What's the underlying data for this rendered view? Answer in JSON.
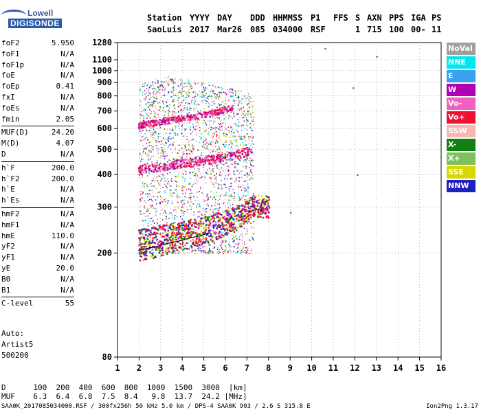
{
  "logo": {
    "line1": "Lowell",
    "line2": "DIGISONDE"
  },
  "header": {
    "station_label": "Station",
    "station": "SaoLuis",
    "yyyy_label": "YYYY",
    "yyyy": "2017",
    "day_label": "DAY",
    "day": "Mar26",
    "ddd_label": "DDD",
    "ddd": "085",
    "hhmmss_label": "HHMMSS",
    "hhmmss": "034000",
    "p1_label": "P1",
    "p1": "RSF",
    "ffs_label": "FFS",
    "ffs": "",
    "s_label": "S",
    "s": "1",
    "axn_label": "AXN",
    "axn": "715",
    "pps_label": "PPS",
    "pps": "100",
    "iga_label": "IGA",
    "iga": "00-",
    "ps_label": "PS",
    "ps": "11"
  },
  "params": {
    "group1": [
      {
        "k": "foF2",
        "v": "5.950"
      },
      {
        "k": "foF1",
        "v": "N/A"
      },
      {
        "k": "foF1p",
        "v": "N/A"
      },
      {
        "k": "foE",
        "v": "N/A"
      },
      {
        "k": "foEp",
        "v": "0.41"
      },
      {
        "k": "fxI",
        "v": "N/A"
      },
      {
        "k": "foEs",
        "v": "N/A"
      },
      {
        "k": "fmin",
        "v": "2.05"
      }
    ],
    "group2": [
      {
        "k": "MUF(D)",
        "v": "24.20"
      },
      {
        "k": "M(D)",
        "v": "4.07"
      },
      {
        "k": "D",
        "v": "N/A"
      }
    ],
    "group3": [
      {
        "k": "h`F",
        "v": "200.0"
      },
      {
        "k": "h`F2",
        "v": "200.0"
      },
      {
        "k": "h`E",
        "v": "N/A"
      },
      {
        "k": "h`Es",
        "v": "N/A"
      }
    ],
    "group4": [
      {
        "k": "hmF2",
        "v": "N/A"
      },
      {
        "k": "hmF1",
        "v": "N/A"
      },
      {
        "k": "hmE",
        "v": "110.0"
      },
      {
        "k": "yF2",
        "v": "N/A"
      },
      {
        "k": "yF1",
        "v": "N/A"
      },
      {
        "k": "yE",
        "v": "20.0"
      },
      {
        "k": "B0",
        "v": "N/A"
      },
      {
        "k": "B1",
        "v": "N/A"
      }
    ],
    "group5": [
      {
        "k": "C-level",
        "v": "55"
      }
    ]
  },
  "auto": {
    "line1": "Auto:",
    "line2": "Artist5",
    "line3": "500200"
  },
  "legend": [
    {
      "label": "NoVal",
      "color": "#a0a0a0"
    },
    {
      "label": "NNE",
      "color": "#00e5ee"
    },
    {
      "label": "E",
      "color": "#3aa0f0"
    },
    {
      "label": "W",
      "color": "#b000b0"
    },
    {
      "label": "Vo-",
      "color": "#f060c0"
    },
    {
      "label": "Vo+",
      "color": "#f01030"
    },
    {
      "label": "SSW",
      "color": "#f4b8b0"
    },
    {
      "label": "X-",
      "color": "#108010"
    },
    {
      "label": "X+",
      "color": "#80c060"
    },
    {
      "label": "SSE",
      "color": "#d8d800"
    },
    {
      "label": "NNW",
      "color": "#2020c0"
    }
  ],
  "chart_data": {
    "type": "scatter",
    "title": "",
    "xlabel": "",
    "ylabel": "",
    "xlim": [
      1,
      16
    ],
    "ylim": [
      80,
      1280
    ],
    "y_scale": "log",
    "x_ticks": [
      1,
      2,
      3,
      4,
      5,
      6,
      7,
      8,
      9,
      10,
      11,
      12,
      13,
      14,
      15,
      16
    ],
    "y_ticks": [
      80,
      200,
      300,
      400,
      500,
      600,
      700,
      800,
      900,
      1000,
      1100,
      1280
    ],
    "grid": "dotted",
    "traces": [
      {
        "name": "O-trace main",
        "x": [
          1.95,
          2.3,
          2.8,
          3.3,
          3.8,
          4.3,
          4.8,
          5.3,
          5.8,
          6.3,
          6.7,
          7.0,
          7.3,
          7.7,
          8.0
        ],
        "y": [
          205,
          208,
          212,
          218,
          222,
          228,
          233,
          240,
          248,
          258,
          270,
          285,
          295,
          292,
          290
        ]
      },
      {
        "name": "Multi-hop 2",
        "x": [
          1.95,
          2.3,
          2.8,
          3.3,
          3.8,
          4.3,
          4.8,
          5.3,
          5.8,
          6.3,
          6.8,
          7.2
        ],
        "y": [
          410,
          415,
          420,
          428,
          435,
          440,
          446,
          452,
          460,
          470,
          480,
          490
        ]
      },
      {
        "name": "Multi-hop 3",
        "x": [
          1.95,
          2.3,
          2.8,
          3.3,
          3.8,
          4.3,
          4.8,
          5.3,
          5.8,
          6.3
        ],
        "y": [
          615,
          620,
          630,
          640,
          650,
          660,
          670,
          680,
          700,
          720
        ]
      }
    ],
    "spread_region": {
      "x": [
        2.0,
        7.3
      ],
      "y": [
        200,
        960
      ]
    },
    "isolated_points": [
      {
        "x": 10.6,
        "y": 1220
      },
      {
        "x": 11.9,
        "y": 862
      },
      {
        "x": 12.1,
        "y": 400
      },
      {
        "x": 13.0,
        "y": 1135
      },
      {
        "x": 9.0,
        "y": 287
      }
    ]
  },
  "bottom_table": {
    "row1_label": "D",
    "row1": [
      "100",
      "200",
      "400",
      "600",
      "800",
      "1000",
      "1500",
      "3000",
      "[km]"
    ],
    "row2_label": "MUF",
    "row2": [
      "6.3",
      "6.4",
      "6.8",
      "7.5",
      "8.4",
      "9.8",
      "13.7",
      "24.2",
      "[MHz]"
    ]
  },
  "footer": "SAA0K_2017085034000.RSF / 300fx256h 50 kHz 5.0 km / DPS-4 SAA0K 903 / 2.6 S 315.8 E",
  "version": "Ion2Png 1.3.17"
}
